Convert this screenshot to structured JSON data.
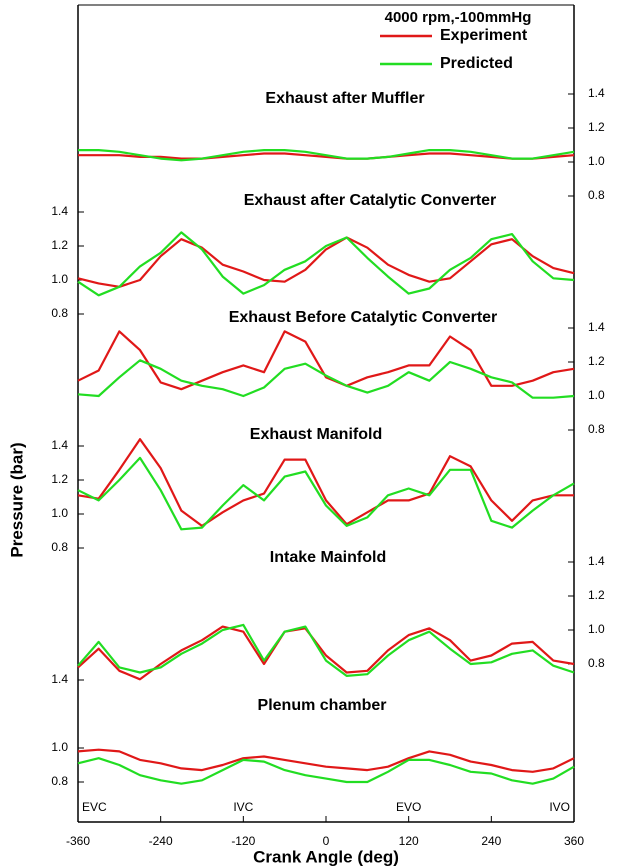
{
  "chart_data": {
    "type": "line",
    "annotation": "4000 rpm,-100mmHg",
    "xlabel": "Crank Angle (deg)",
    "ylabel": "Pressure (bar)",
    "xlim": [
      -360,
      360
    ],
    "xticks": [
      -360,
      -240,
      -120,
      0,
      120,
      240,
      360
    ],
    "events": [
      {
        "label": "EVC",
        "x": -360
      },
      {
        "label": "IVC",
        "x": -120
      },
      {
        "label": "EVO",
        "x": 120
      },
      {
        "label": "IVO",
        "x": 360
      }
    ],
    "x": [
      -360,
      -330,
      -300,
      -270,
      -240,
      -210,
      -180,
      -150,
      -120,
      -90,
      -60,
      -30,
      0,
      30,
      60,
      90,
      120,
      150,
      180,
      210,
      240,
      270,
      300,
      330,
      360
    ],
    "panels": [
      {
        "title": "Exhaust after Muffler",
        "y_axis": "right",
        "ylim": [
          0.75,
          1.45
        ],
        "yticks": [
          0.8,
          {
            "value": 1,
            "label": "1.0"
          },
          1.2,
          1.4
        ],
        "series": [
          {
            "name": "Experiment",
            "color": "#e01818",
            "values": [
              1.04,
              1.04,
              1.04,
              1.03,
              1.03,
              1.02,
              1.02,
              1.03,
              1.04,
              1.05,
              1.05,
              1.04,
              1.03,
              1.02,
              1.02,
              1.03,
              1.04,
              1.05,
              1.05,
              1.04,
              1.03,
              1.02,
              1.02,
              1.03,
              1.04
            ]
          },
          {
            "name": "Predicted",
            "color": "#22dd22",
            "values": [
              1.07,
              1.07,
              1.06,
              1.04,
              1.02,
              1.01,
              1.02,
              1.04,
              1.06,
              1.07,
              1.07,
              1.06,
              1.04,
              1.02,
              1.02,
              1.03,
              1.05,
              1.07,
              1.07,
              1.06,
              1.04,
              1.02,
              1.02,
              1.04,
              1.06
            ]
          }
        ]
      },
      {
        "title": "Exhaust after Catalytic Converter",
        "y_axis": "left",
        "ylim": [
          0.75,
          1.45
        ],
        "yticks": [
          0.8,
          {
            "value": 1,
            "label": "1.0"
          },
          1.2,
          1.4
        ],
        "series": [
          {
            "name": "Experiment",
            "color": "#e01818",
            "values": [
              1.01,
              0.98,
              0.96,
              1.0,
              1.14,
              1.24,
              1.19,
              1.09,
              1.05,
              1.0,
              0.99,
              1.06,
              1.18,
              1.25,
              1.19,
              1.09,
              1.03,
              0.99,
              1.01,
              1.11,
              1.21,
              1.24,
              1.14,
              1.07,
              1.04
            ]
          },
          {
            "name": "Predicted",
            "color": "#22dd22",
            "values": [
              0.99,
              0.91,
              0.96,
              1.08,
              1.16,
              1.28,
              1.18,
              1.02,
              0.92,
              0.97,
              1.06,
              1.11,
              1.2,
              1.25,
              1.13,
              1.02,
              0.92,
              0.95,
              1.06,
              1.13,
              1.24,
              1.27,
              1.11,
              1.01,
              1.0
            ]
          }
        ]
      },
      {
        "title": "Exhaust Before Catalytic Converter",
        "y_axis": "right",
        "ylim": [
          0.75,
          1.45
        ],
        "yticks": [
          0.8,
          {
            "value": 1,
            "label": "1.0"
          },
          1.2,
          1.4
        ],
        "series": [
          {
            "name": "Experiment",
            "color": "#e01818",
            "values": [
              1.09,
              1.15,
              1.38,
              1.27,
              1.08,
              1.04,
              1.09,
              1.14,
              1.18,
              1.14,
              1.38,
              1.32,
              1.11,
              1.06,
              1.11,
              1.14,
              1.18,
              1.18,
              1.35,
              1.27,
              1.06,
              1.06,
              1.09,
              1.14,
              1.16
            ]
          },
          {
            "name": "Predicted",
            "color": "#22dd22",
            "values": [
              1.01,
              1.0,
              1.11,
              1.21,
              1.16,
              1.09,
              1.06,
              1.04,
              1.0,
              1.05,
              1.16,
              1.19,
              1.12,
              1.06,
              1.02,
              1.06,
              1.14,
              1.09,
              1.2,
              1.16,
              1.11,
              1.08,
              0.99,
              0.99,
              1.0
            ]
          }
        ]
      },
      {
        "title": "Exhaust Manifold",
        "y_axis": "left",
        "ylim": [
          0.75,
          1.45
        ],
        "yticks": [
          0.8,
          {
            "value": 1,
            "label": "1.0"
          },
          1.2,
          1.4
        ],
        "series": [
          {
            "name": "Experiment",
            "color": "#e01818",
            "values": [
              1.11,
              1.09,
              1.26,
              1.44,
              1.27,
              1.02,
              0.93,
              1.01,
              1.08,
              1.12,
              1.32,
              1.32,
              1.08,
              0.94,
              1.01,
              1.08,
              1.08,
              1.12,
              1.34,
              1.28,
              1.08,
              0.96,
              1.08,
              1.11,
              1.11
            ]
          },
          {
            "name": "Predicted",
            "color": "#22dd22",
            "values": [
              1.14,
              1.08,
              1.2,
              1.33,
              1.14,
              0.91,
              0.92,
              1.05,
              1.17,
              1.08,
              1.22,
              1.25,
              1.05,
              0.93,
              0.98,
              1.11,
              1.15,
              1.11,
              1.26,
              1.26,
              0.96,
              0.92,
              1.02,
              1.11,
              1.18
            ]
          }
        ]
      },
      {
        "title": "Intake Mainfold",
        "y_axis": "right",
        "ylim": [
          0.75,
          1.45
        ],
        "yticks": [
          0.8,
          {
            "value": 1,
            "label": "1.0"
          },
          1.2,
          1.4
        ],
        "series": [
          {
            "name": "Experiment",
            "color": "#e01818",
            "values": [
              0.78,
              0.89,
              0.76,
              0.71,
              0.8,
              0.88,
              0.94,
              1.02,
              0.99,
              0.8,
              0.99,
              1.01,
              0.85,
              0.75,
              0.76,
              0.88,
              0.97,
              1.01,
              0.94,
              0.82,
              0.85,
              0.92,
              0.93,
              0.82,
              0.8
            ]
          },
          {
            "name": "Predicted",
            "color": "#22dd22",
            "values": [
              0.79,
              0.93,
              0.78,
              0.75,
              0.78,
              0.86,
              0.92,
              1.0,
              1.03,
              0.82,
              0.99,
              1.02,
              0.82,
              0.73,
              0.74,
              0.85,
              0.94,
              0.99,
              0.89,
              0.8,
              0.81,
              0.86,
              0.88,
              0.79,
              0.75
            ]
          }
        ]
      },
      {
        "title": "Plenum chamber",
        "y_axis": "left",
        "ylim": [
          0.75,
          1.45
        ],
        "yticks": [
          0.8,
          {
            "value": 1,
            "label": "1.0"
          },
          1.4
        ],
        "series": [
          {
            "name": "Experiment",
            "color": "#e01818",
            "values": [
              0.98,
              0.99,
              0.98,
              0.93,
              0.91,
              0.88,
              0.87,
              0.9,
              0.94,
              0.95,
              0.93,
              0.91,
              0.89,
              0.88,
              0.87,
              0.89,
              0.94,
              0.98,
              0.96,
              0.92,
              0.9,
              0.87,
              0.86,
              0.88,
              0.94
            ]
          },
          {
            "name": "Predicted",
            "color": "#22dd22",
            "values": [
              0.91,
              0.94,
              0.9,
              0.84,
              0.81,
              0.79,
              0.81,
              0.87,
              0.93,
              0.92,
              0.87,
              0.84,
              0.82,
              0.8,
              0.8,
              0.86,
              0.93,
              0.93,
              0.9,
              0.86,
              0.85,
              0.81,
              0.79,
              0.82,
              0.89
            ]
          }
        ]
      }
    ]
  }
}
